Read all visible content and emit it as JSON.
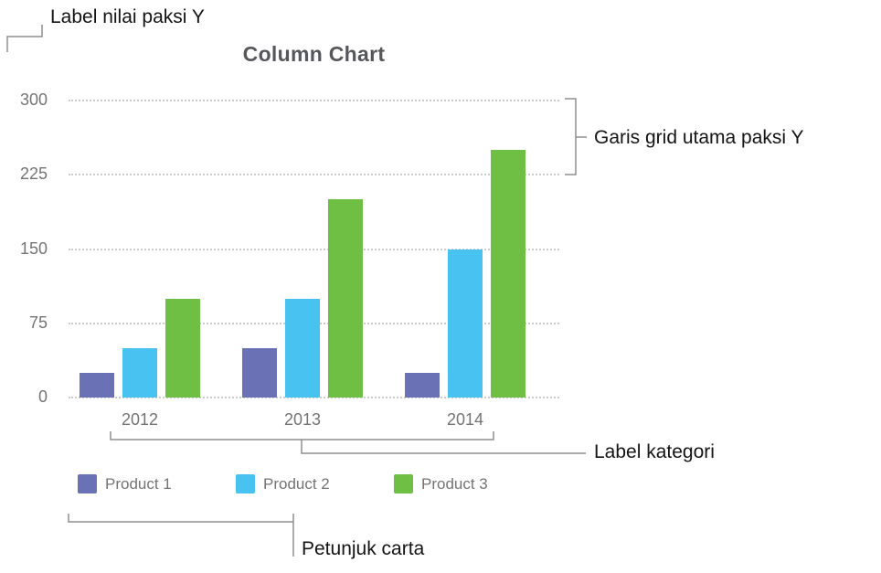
{
  "annotations": {
    "y_value_label": "Label nilai paksi Y",
    "y_gridlines": "Garis grid utama paksi Y",
    "category_label": "Label kategori",
    "legend_label": "Petunjuk carta"
  },
  "chart_data": {
    "type": "bar",
    "title": "Column Chart",
    "categories": [
      "2012",
      "2013",
      "2014"
    ],
    "series": [
      {
        "name": "Product 1",
        "color": "#6b71b5",
        "values": [
          25,
          50,
          25
        ]
      },
      {
        "name": "Product 2",
        "color": "#48c2f1",
        "values": [
          50,
          100,
          150
        ]
      },
      {
        "name": "Product 3",
        "color": "#6fbf44",
        "values": [
          100,
          200,
          250
        ]
      }
    ],
    "yticks": [
      0,
      75,
      150,
      225,
      300
    ],
    "ylim": [
      0,
      300
    ],
    "xlabel": "",
    "ylabel": "",
    "grid": "dotted-horizontal",
    "legend_position": "bottom"
  },
  "colors": {
    "grid": "#cbcbcb",
    "axis_text": "#747476",
    "title_text": "#56575b",
    "callout_line": "#8f8f8f",
    "annotation_text": "#141414"
  }
}
